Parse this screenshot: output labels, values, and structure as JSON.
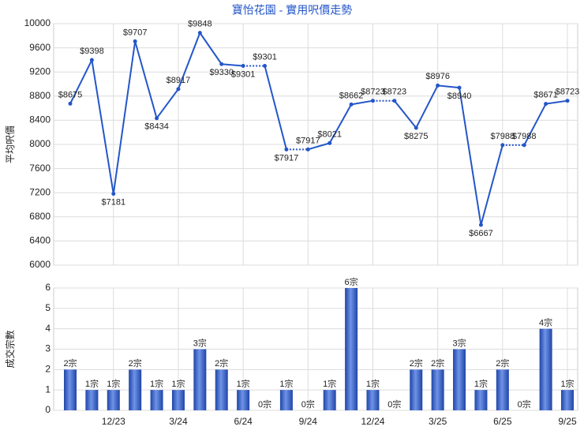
{
  "chart_data": [
    {
      "type": "line",
      "title": "寶怡花園 - 實用呎價走勢",
      "y_label": "平均呎價",
      "color": "#2456c9",
      "values": [
        8675,
        9398,
        7181,
        9707,
        8434,
        8917,
        9848,
        9330,
        9301,
        9301,
        7917,
        7917,
        8021,
        8662,
        8723,
        8723,
        8275,
        8976,
        8940,
        6667,
        7988,
        7988,
        8671,
        8723
      ],
      "value_labels": [
        "$8675",
        "$9398",
        "$7181",
        "$9707",
        "$8434",
        "$8917",
        "$9848",
        "$9330",
        "$9301",
        "$9301",
        "$7917",
        "$7917",
        "$8021",
        "$8662",
        "$8723",
        "$8723",
        "$8275",
        "$8976",
        "$8940",
        "$6667",
        "$7988",
        "$7988",
        "$8671",
        "$8723"
      ],
      "ylim": [
        6000,
        10000
      ],
      "yticks": [
        6000,
        6400,
        6800,
        7200,
        7600,
        8000,
        8400,
        8800,
        9200,
        9600,
        10000
      ],
      "grid": true
    },
    {
      "type": "bar",
      "y_label": "成交宗數",
      "color": "#3a62c6",
      "categories": [
        null,
        null,
        "12/23",
        null,
        null,
        "3/24",
        null,
        null,
        "6/24",
        null,
        null,
        "9/24",
        null,
        null,
        "12/24",
        null,
        null,
        "3/25",
        null,
        null,
        "6/25",
        null,
        null,
        "9/25"
      ],
      "values": [
        2,
        1,
        1,
        2,
        1,
        1,
        3,
        2,
        1,
        0,
        1,
        0,
        1,
        6,
        1,
        0,
        2,
        2,
        3,
        1,
        2,
        0,
        4,
        1
      ],
      "value_labels": [
        "2宗",
        "1宗",
        "1宗",
        "2宗",
        "1宗",
        "1宗",
        "3宗",
        "2宗",
        "1宗",
        "0宗",
        "1宗",
        "0宗",
        "1宗",
        "6宗",
        "1宗",
        "0宗",
        "2宗",
        "2宗",
        "3宗",
        "1宗",
        "2宗",
        "0宗",
        "4宗",
        "1宗"
      ],
      "ylim": [
        0,
        6
      ],
      "yticks": [
        0,
        1,
        2,
        3,
        4,
        5,
        6
      ],
      "grid": true
    }
  ]
}
